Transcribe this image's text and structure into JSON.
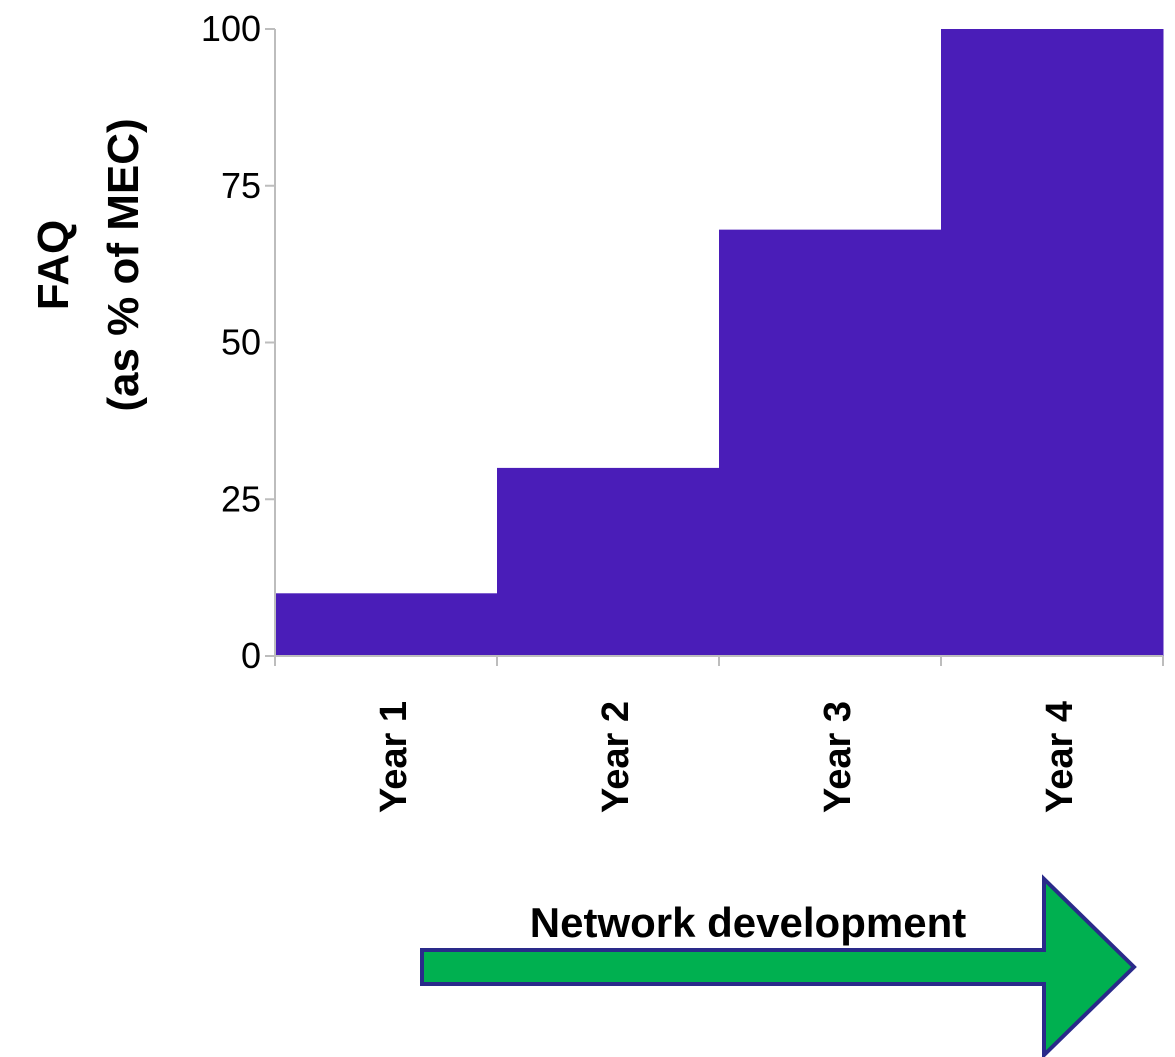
{
  "chart_data": {
    "type": "bar",
    "categories": [
      "Year 1",
      "Year 2",
      "Year 3",
      "Year 4"
    ],
    "values": [
      10,
      30,
      68,
      100
    ],
    "ylabel_lines": [
      "FAQ",
      "(as % of MEC)"
    ],
    "xlabel": "",
    "title": "",
    "ylim": [
      0,
      100
    ],
    "yticks": [
      0,
      25,
      50,
      75,
      100
    ],
    "grid": false,
    "legend": "none",
    "colors": {
      "bar": "#4a1db8",
      "axis": "#bdbdbd"
    }
  },
  "banner": {
    "label": "Network development",
    "fill": "#00b050",
    "stroke": "#2a2a8a"
  }
}
